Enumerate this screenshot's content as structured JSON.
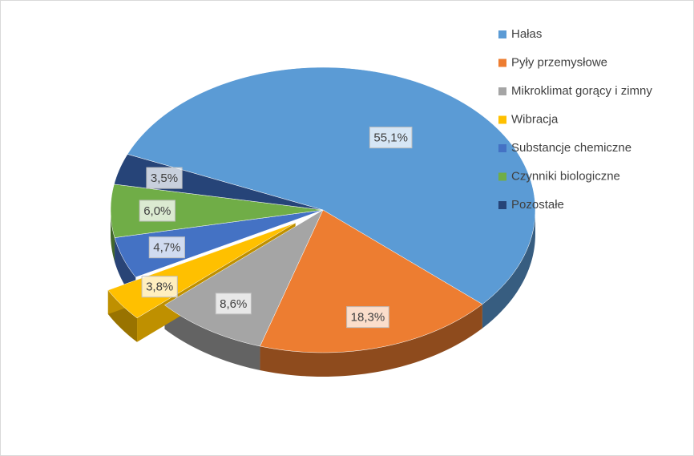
{
  "chart_data": {
    "type": "pie3d",
    "categories": [
      "Hałas",
      "Pyły przemysłowe",
      "Mikroklimat gorący i zimny",
      "Wibracja",
      "Substancje chemiczne",
      "Czynniki biologiczne",
      "Pozostałe"
    ],
    "values": [
      55.1,
      18.3,
      8.6,
      3.8,
      4.7,
      6.0,
      3.5
    ],
    "value_labels": [
      "55,1%",
      "18,3%",
      "8,6%",
      "3,8%",
      "4,7%",
      "6,0%",
      "3,5%"
    ],
    "colors": [
      "#5b9bd5",
      "#ed7d31",
      "#a5a5a5",
      "#ffc000",
      "#4472c4",
      "#70ad47",
      "#264478"
    ],
    "exploded": [
      false,
      false,
      false,
      true,
      false,
      false,
      false
    ],
    "legend": "top-right"
  }
}
